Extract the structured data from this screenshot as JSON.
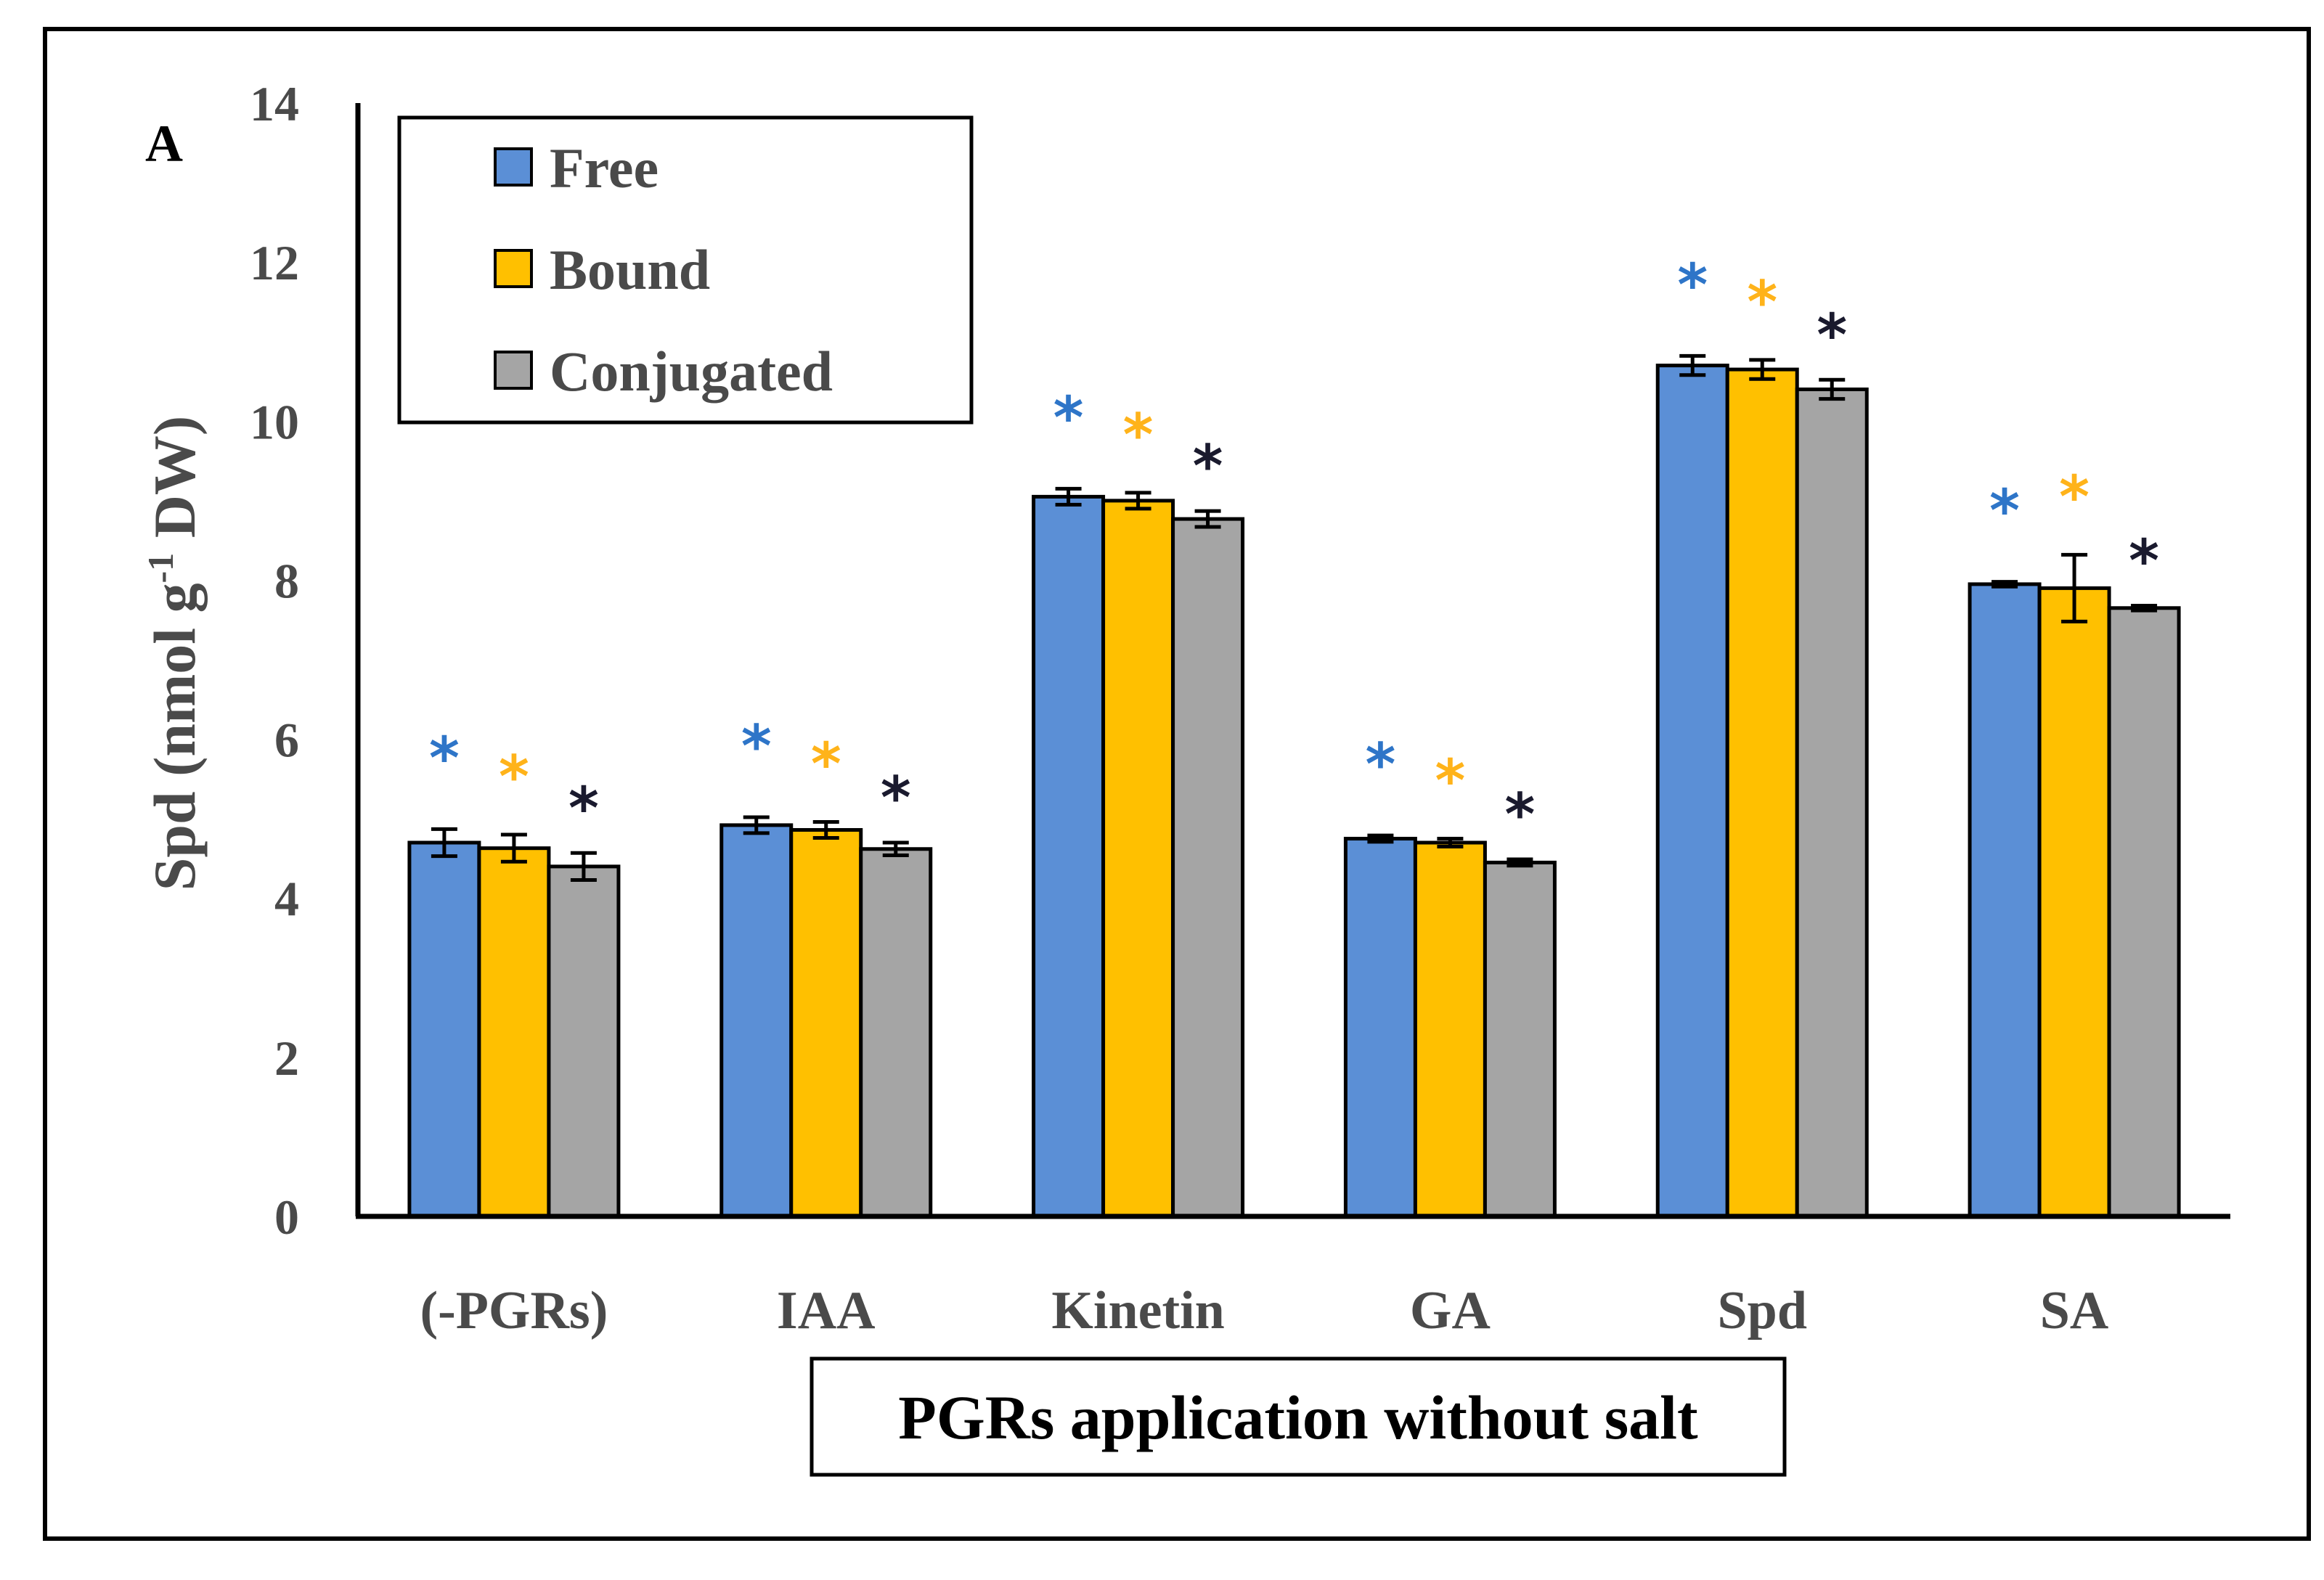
{
  "panel_label": "A",
  "legend": {
    "items": [
      {
        "label": "Free",
        "color": "#5b8fd6"
      },
      {
        "label": "Bound",
        "color": "#ffc000"
      },
      {
        "label": "Conjugated",
        "color": "#a5a5a5"
      }
    ]
  },
  "chart_data": {
    "type": "bar",
    "title": "",
    "xlabel": "PGRs application without salt",
    "ylabel_main": "Spd (nmol g",
    "ylabel_sup": "-1",
    "ylabel_end": " DW)",
    "ylim": [
      0,
      14
    ],
    "yticks": [
      0,
      2,
      4,
      6,
      8,
      10,
      12,
      14
    ],
    "categories": [
      "(-PGRs)",
      "IAA",
      "Kinetin",
      "GA",
      "Spd",
      "SA"
    ],
    "series": [
      {
        "name": "Free",
        "color": "#5b8fd6",
        "star_color": "#2e75c8",
        "values": [
          4.7,
          4.92,
          9.05,
          4.75,
          10.7,
          7.95
        ],
        "errors": [
          0.17,
          0.1,
          0.1,
          0.04,
          0.12,
          0.03
        ]
      },
      {
        "name": "Bound",
        "color": "#ffc000",
        "star_color": "#ffb31a",
        "values": [
          4.63,
          4.86,
          9.0,
          4.7,
          10.65,
          7.9
        ],
        "errors": [
          0.17,
          0.1,
          0.1,
          0.05,
          0.12,
          0.42
        ]
      },
      {
        "name": "Conjugated",
        "color": "#a5a5a5",
        "star_color": "#1a1a2e",
        "values": [
          4.4,
          4.62,
          8.77,
          4.45,
          10.4,
          7.65
        ],
        "errors": [
          0.17,
          0.08,
          0.1,
          0.04,
          0.12,
          0.03
        ]
      }
    ],
    "significance_marker": "*",
    "grid": false,
    "legend_position": "top-left"
  }
}
